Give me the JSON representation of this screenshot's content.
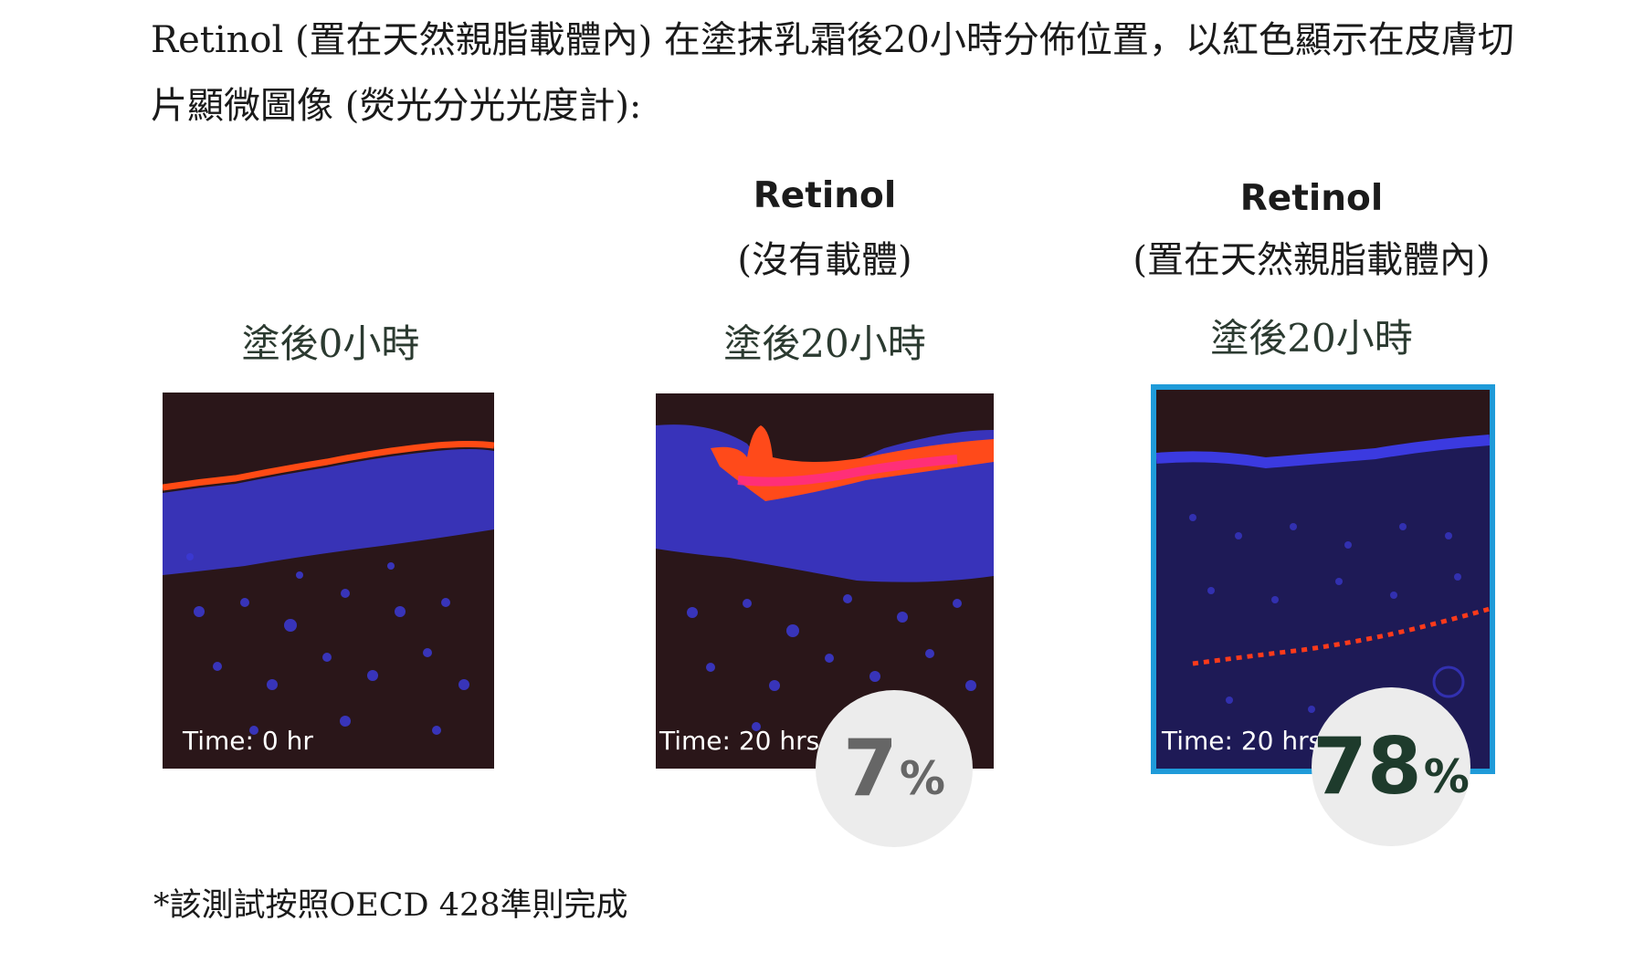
{
  "intro_text": "Retinol (置在天然親脂載體內) 在塗抹乳霜後20小時分佈位置，以紅色顯示在皮膚切片顯微圖像 (熒光分光光度計):",
  "columns": [
    {
      "title": "",
      "subtitle": "",
      "time_heading": "塗後0小時",
      "image_label": "Time: 0 hr",
      "percent_value": "",
      "percent_sign": ""
    },
    {
      "title": "Retinol",
      "subtitle": "(沒有載體)",
      "time_heading": "塗後20小時",
      "image_label": "Time: 20 hrs",
      "percent_value": "7",
      "percent_sign": "%"
    },
    {
      "title": "Retinol",
      "subtitle": "(置在天然親脂載體內)",
      "time_heading": "塗後20小時",
      "image_label": "Time: 20 hrs",
      "percent_value": "78",
      "percent_sign": "%"
    }
  ],
  "footnote": "*該測試按照OECD 428準則完成",
  "colors": {
    "badge_bg": "#ececec",
    "badge_text_7": "#666666",
    "badge_text_78": "#1e3b2c",
    "highlight_border": "#1f9bd9",
    "tissue_blue": "#3a3ad0",
    "retinol_red": "#ff3a1a"
  }
}
